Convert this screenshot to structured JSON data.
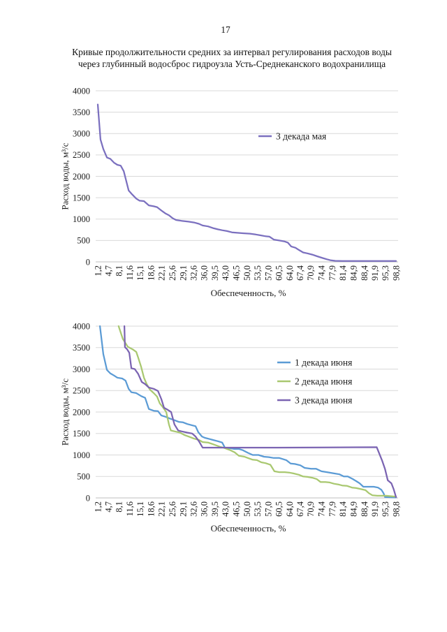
{
  "page": {
    "number": "17",
    "title_lines": [
      "Кривые продолжительности средних за интервал регулирования расходов воды",
      "через глубинный водосброс гидроузла Усть-Среднеканского водохранилища"
    ]
  },
  "chart_data": [
    {
      "type": "line",
      "xlabel": "Обеспеченность, %",
      "ylabel": "Расход воды, м³/с",
      "xlim": [
        1.2,
        98.8
      ],
      "ylim": [
        0,
        4000
      ],
      "yticks": [
        0,
        500,
        1000,
        1500,
        2000,
        2500,
        3000,
        3500,
        4000
      ],
      "xticks": [
        "1,2",
        "4,7",
        "8,1",
        "11,6",
        "15,1",
        "18,6",
        "22,1",
        "25,6",
        "29,1",
        "32,6",
        "36,0",
        "39,5",
        "43,0",
        "46,5",
        "50,0",
        "53,5",
        "57,0",
        "60,5",
        "64,0",
        "67,4",
        "70,9",
        "74,4",
        "77,9",
        "81,4",
        "84,9",
        "88,4",
        "91,9",
        "95,3",
        "98,8"
      ],
      "grid": true,
      "legend": "top-right",
      "series": [
        {
          "name": "3 декада мая",
          "color": "#7b70bf",
          "points": [
            [
              1.2,
              3680
            ],
            [
              2.1,
              2860
            ],
            [
              3.0,
              2640
            ],
            [
              4.2,
              2440
            ],
            [
              5.3,
              2410
            ],
            [
              6.5,
              2320
            ],
            [
              7.6,
              2270
            ],
            [
              8.7,
              2250
            ],
            [
              9.7,
              2120
            ],
            [
              11.3,
              1670
            ],
            [
              12.4,
              1580
            ],
            [
              13.8,
              1480
            ],
            [
              14.9,
              1430
            ],
            [
              16.3,
              1420
            ],
            [
              17.9,
              1320
            ],
            [
              19.5,
              1300
            ],
            [
              20.6,
              1280
            ],
            [
              22.2,
              1190
            ],
            [
              23.4,
              1130
            ],
            [
              24.5,
              1090
            ],
            [
              25.7,
              1020
            ],
            [
              26.8,
              980
            ],
            [
              28.6,
              960
            ],
            [
              30.9,
              940
            ],
            [
              32.7,
              920
            ],
            [
              34.3,
              890
            ],
            [
              35.5,
              850
            ],
            [
              37.3,
              830
            ],
            [
              38.9,
              790
            ],
            [
              40.5,
              760
            ],
            [
              41.9,
              740
            ],
            [
              43.5,
              720
            ],
            [
              45.1,
              690
            ],
            [
              46.9,
              680
            ],
            [
              48.7,
              670
            ],
            [
              51.0,
              660
            ],
            [
              52.9,
              640
            ],
            [
              54.5,
              620
            ],
            [
              56.1,
              600
            ],
            [
              57.4,
              590
            ],
            [
              58.8,
              520
            ],
            [
              60.6,
              500
            ],
            [
              62.2,
              480
            ],
            [
              63.4,
              450
            ],
            [
              64.5,
              360
            ],
            [
              65.9,
              330
            ],
            [
              67.0,
              280
            ],
            [
              68.4,
              220
            ],
            [
              69.8,
              200
            ],
            [
              71.4,
              170
            ],
            [
              73.0,
              130
            ],
            [
              74.8,
              90
            ],
            [
              76.2,
              60
            ],
            [
              77.3,
              40
            ],
            [
              78.9,
              25
            ],
            [
              81.2,
              20
            ],
            [
              98.8,
              20
            ]
          ]
        }
      ]
    },
    {
      "type": "line",
      "xlabel": "Обеспеченность, %",
      "ylabel": "Расход воды, м³/с",
      "xlim": [
        1.2,
        98.8
      ],
      "ylim": [
        0,
        4000
      ],
      "yticks": [
        0,
        500,
        1000,
        1500,
        2000,
        2500,
        3000,
        3500,
        4000
      ],
      "xticks": [
        "1,2",
        "4,7",
        "8,1",
        "11,6",
        "15,1",
        "18,6",
        "22,1",
        "25,6",
        "29,1",
        "32,6",
        "36,0",
        "39,5",
        "43,0",
        "46,5",
        "50,0",
        "53,5",
        "57,0",
        "60,5",
        "64,0",
        "67,4",
        "70,9",
        "74,4",
        "77,9",
        "81,4",
        "84,9",
        "88,4",
        "91,9",
        "95,3",
        "98,8"
      ],
      "grid": true,
      "legend": "top-right",
      "series": [
        {
          "name": "1 декада июня",
          "color": "#5b9bd5",
          "points": [
            [
              1.9,
              4000
            ],
            [
              3.0,
              3350
            ],
            [
              4.2,
              2980
            ],
            [
              5.3,
              2900
            ],
            [
              6.5,
              2850
            ],
            [
              7.6,
              2800
            ],
            [
              9.2,
              2780
            ],
            [
              10.3,
              2730
            ],
            [
              11.3,
              2540
            ],
            [
              12.2,
              2460
            ],
            [
              13.8,
              2440
            ],
            [
              15.4,
              2370
            ],
            [
              16.7,
              2330
            ],
            [
              17.9,
              2070
            ],
            [
              19.5,
              2030
            ],
            [
              20.9,
              2020
            ],
            [
              22.0,
              1920
            ],
            [
              23.4,
              1890
            ],
            [
              24.7,
              1850
            ],
            [
              26.3,
              1810
            ],
            [
              27.7,
              1770
            ],
            [
              29.1,
              1760
            ],
            [
              30.5,
              1720
            ],
            [
              32.1,
              1690
            ],
            [
              33.2,
              1670
            ],
            [
              34.1,
              1530
            ],
            [
              35.3,
              1430
            ],
            [
              36.2,
              1400
            ],
            [
              37.8,
              1370
            ],
            [
              38.9,
              1350
            ],
            [
              40.5,
              1320
            ],
            [
              41.9,
              1290
            ],
            [
              42.8,
              1170
            ],
            [
              44.2,
              1160
            ],
            [
              45.8,
              1140
            ],
            [
              47.4,
              1140
            ],
            [
              48.7,
              1110
            ],
            [
              50.3,
              1050
            ],
            [
              51.9,
              1000
            ],
            [
              53.8,
              1000
            ],
            [
              55.6,
              960
            ],
            [
              57.2,
              950
            ],
            [
              58.8,
              930
            ],
            [
              60.6,
              930
            ],
            [
              62.9,
              880
            ],
            [
              64.3,
              800
            ],
            [
              65.7,
              790
            ],
            [
              67.5,
              760
            ],
            [
              68.9,
              700
            ],
            [
              71.0,
              680
            ],
            [
              72.6,
              680
            ],
            [
              74.4,
              620
            ],
            [
              76.2,
              600
            ],
            [
              78.5,
              570
            ],
            [
              80.3,
              550
            ],
            [
              81.7,
              500
            ],
            [
              83.0,
              500
            ],
            [
              84.6,
              440
            ],
            [
              85.8,
              390
            ],
            [
              86.9,
              340
            ],
            [
              88.1,
              260
            ],
            [
              89.7,
              260
            ],
            [
              91.5,
              260
            ],
            [
              92.9,
              240
            ],
            [
              94.0,
              190
            ],
            [
              94.7,
              110
            ],
            [
              95.2,
              20
            ],
            [
              98.8,
              10
            ]
          ]
        },
        {
          "name": "2 декада июня",
          "color": "#a9c870",
          "points": [
            [
              8.0,
              4000
            ],
            [
              9.4,
              3700
            ],
            [
              11.0,
              3520
            ],
            [
              12.6,
              3460
            ],
            [
              13.8,
              3400
            ],
            [
              14.4,
              3270
            ],
            [
              15.4,
              3050
            ],
            [
              16.3,
              2800
            ],
            [
              17.2,
              2650
            ],
            [
              18.3,
              2520
            ],
            [
              19.5,
              2440
            ],
            [
              20.6,
              2360
            ],
            [
              21.5,
              2200
            ],
            [
              22.4,
              2120
            ],
            [
              23.6,
              2000
            ],
            [
              24.5,
              1710
            ],
            [
              25.1,
              1570
            ],
            [
              26.3,
              1550
            ],
            [
              28.1,
              1520
            ],
            [
              29.7,
              1460
            ],
            [
              30.9,
              1430
            ],
            [
              32.7,
              1380
            ],
            [
              34.3,
              1350
            ],
            [
              35.5,
              1300
            ],
            [
              37.3,
              1290
            ],
            [
              38.9,
              1250
            ],
            [
              40.1,
              1220
            ],
            [
              41.2,
              1190
            ],
            [
              42.3,
              1170
            ],
            [
              43.5,
              1140
            ],
            [
              44.6,
              1110
            ],
            [
              46.0,
              1060
            ],
            [
              47.4,
              980
            ],
            [
              49.2,
              960
            ],
            [
              50.3,
              930
            ],
            [
              51.9,
              890
            ],
            [
              53.3,
              880
            ],
            [
              54.7,
              830
            ],
            [
              56.1,
              810
            ],
            [
              57.7,
              770
            ],
            [
              59.0,
              620
            ],
            [
              60.6,
              600
            ],
            [
              62.4,
              600
            ],
            [
              63.8,
              590
            ],
            [
              65.2,
              570
            ],
            [
              67.0,
              540
            ],
            [
              68.4,
              500
            ],
            [
              69.8,
              490
            ],
            [
              71.4,
              470
            ],
            [
              72.8,
              440
            ],
            [
              74.1,
              370
            ],
            [
              75.7,
              370
            ],
            [
              77.1,
              360
            ],
            [
              78.5,
              330
            ],
            [
              80.1,
              310
            ],
            [
              81.2,
              290
            ],
            [
              82.8,
              280
            ],
            [
              84.4,
              240
            ],
            [
              85.8,
              230
            ],
            [
              87.1,
              210
            ],
            [
              88.8,
              180
            ],
            [
              89.9,
              110
            ],
            [
              91.1,
              60
            ],
            [
              92.7,
              50
            ],
            [
              94.5,
              50
            ],
            [
              95.6,
              50
            ],
            [
              98.8,
              30
            ]
          ]
        },
        {
          "name": "3 декада июня",
          "color": "#7b64b2",
          "points": [
            [
              9.9,
              4000
            ],
            [
              10.1,
              3510
            ],
            [
              10.8,
              3460
            ],
            [
              11.5,
              3380
            ],
            [
              12.2,
              3020
            ],
            [
              13.3,
              3000
            ],
            [
              14.4,
              2890
            ],
            [
              15.6,
              2700
            ],
            [
              16.7,
              2650
            ],
            [
              17.9,
              2570
            ],
            [
              19.5,
              2540
            ],
            [
              20.9,
              2490
            ],
            [
              22.0,
              2300
            ],
            [
              22.9,
              2100
            ],
            [
              24.1,
              2050
            ],
            [
              25.2,
              2000
            ],
            [
              26.3,
              1710
            ],
            [
              27.5,
              1570
            ],
            [
              28.6,
              1550
            ],
            [
              30.5,
              1520
            ],
            [
              32.1,
              1500
            ],
            [
              33.2,
              1430
            ],
            [
              34.3,
              1320
            ],
            [
              35.5,
              1170
            ],
            [
              37.3,
              1170
            ],
            [
              45.0,
              1170
            ],
            [
              60.0,
              1170
            ],
            [
              75.0,
              1175
            ],
            [
              92.5,
              1180
            ],
            [
              94.3,
              860
            ],
            [
              95.2,
              670
            ],
            [
              96.1,
              410
            ],
            [
              97.3,
              340
            ],
            [
              98.0,
              210
            ],
            [
              98.8,
              20
            ]
          ]
        }
      ]
    }
  ]
}
